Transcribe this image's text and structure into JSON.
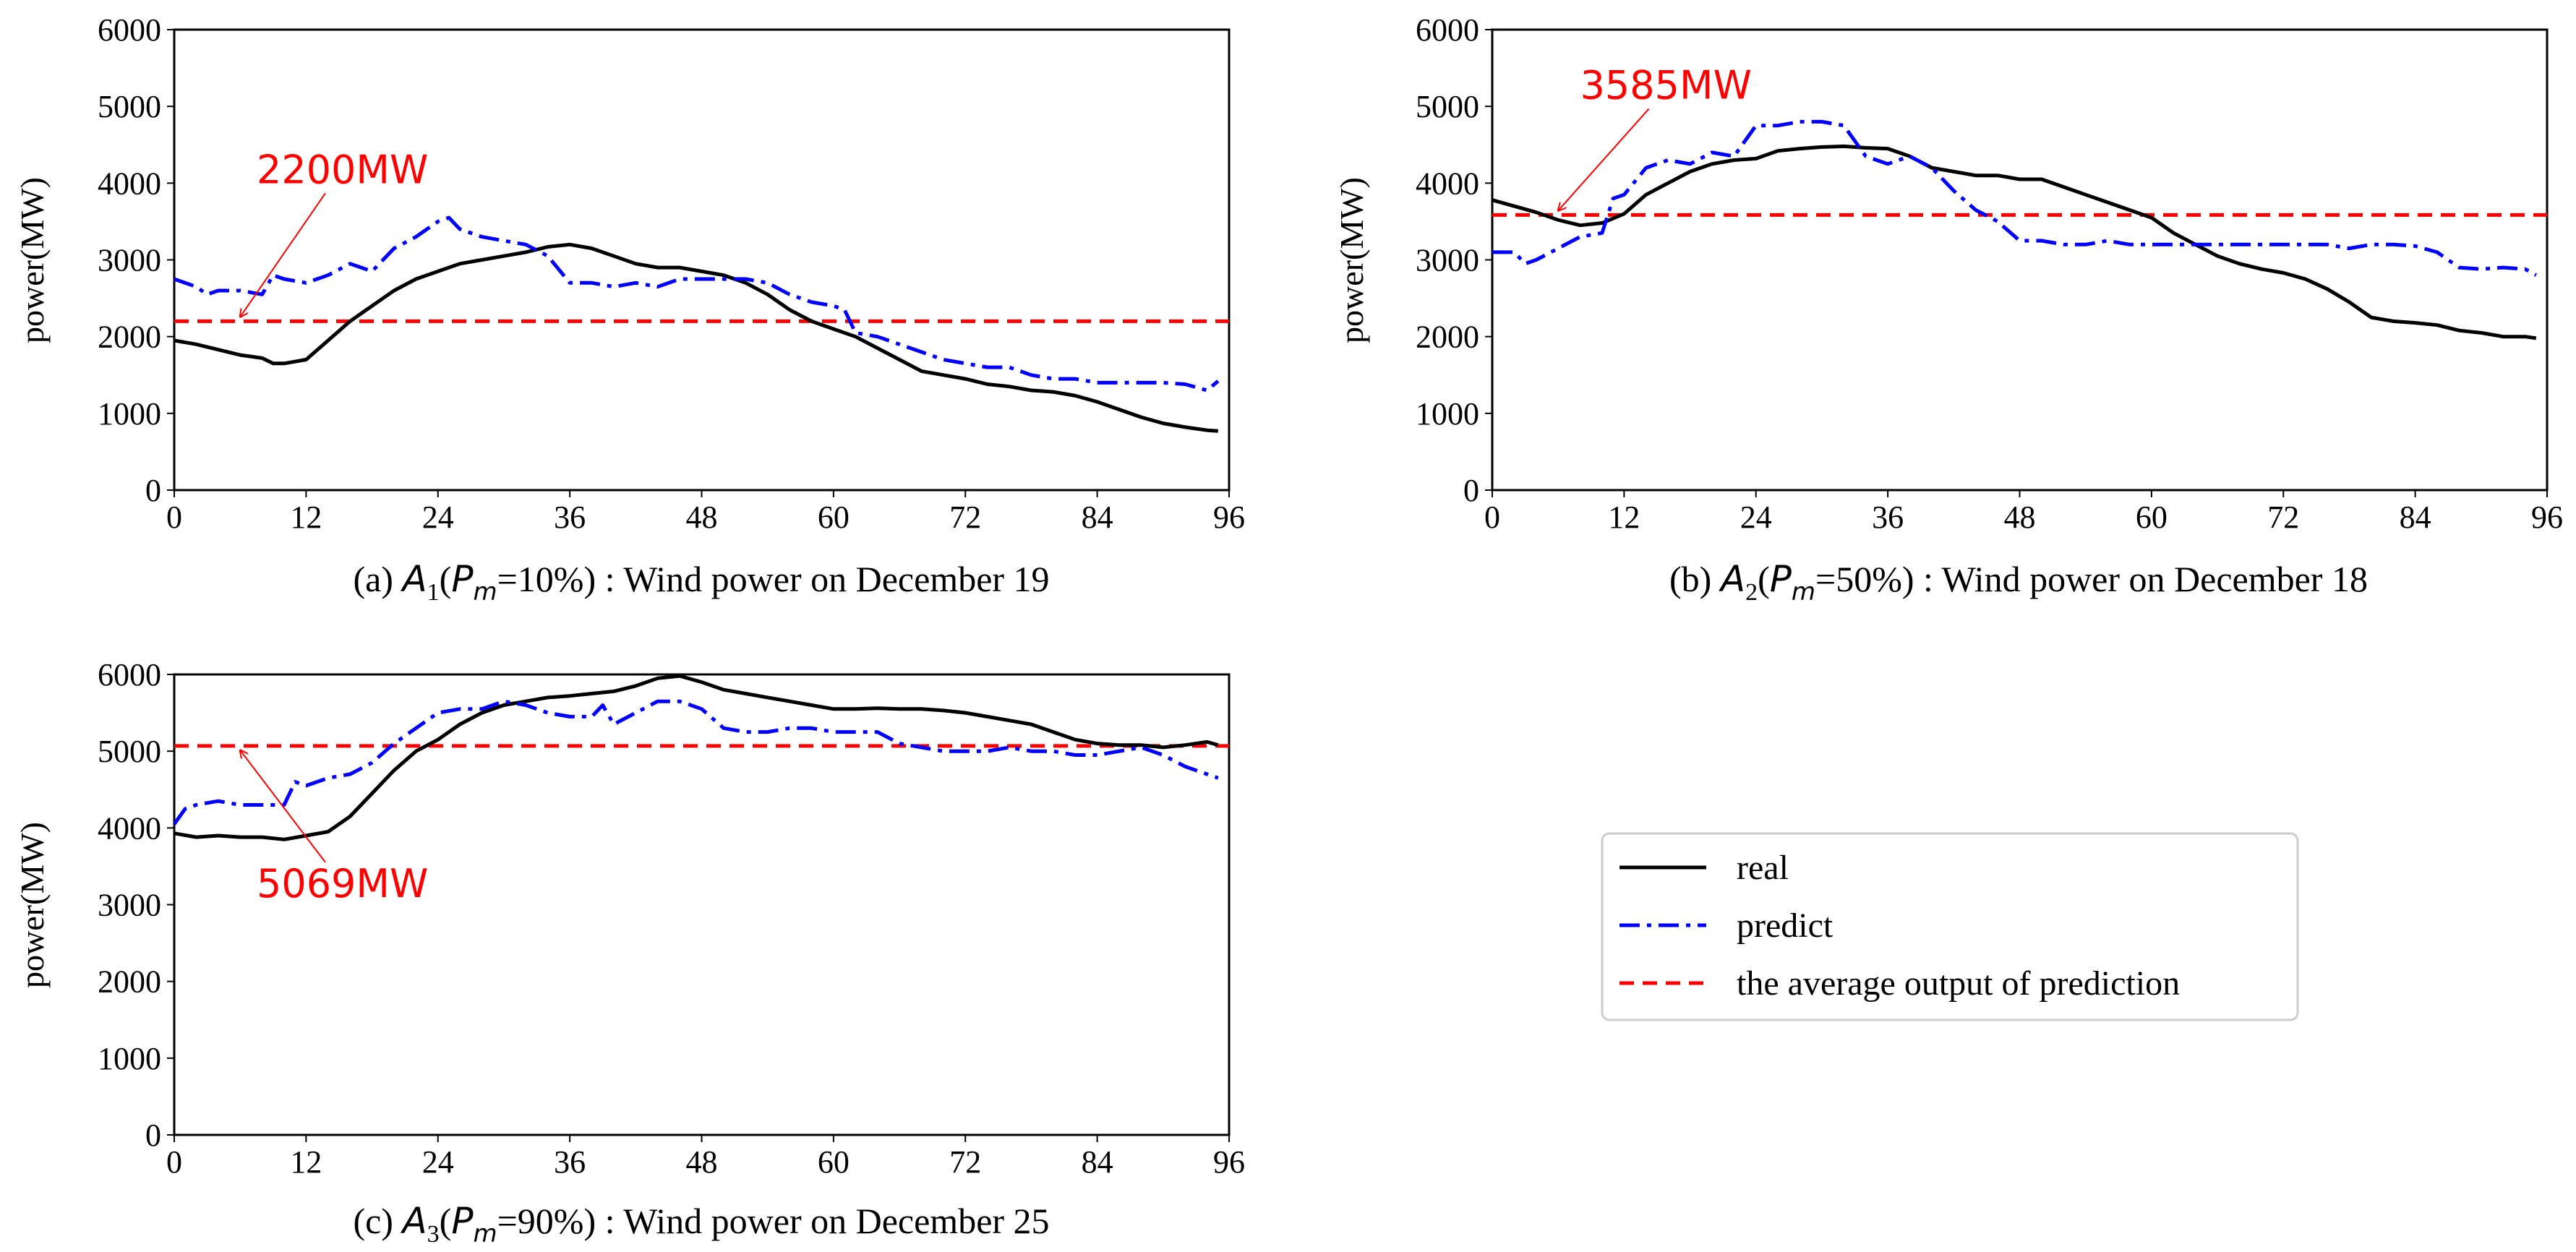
{
  "colors": {
    "real": "#000000",
    "predict": "#0000ff",
    "average": "#ff0000",
    "annotation": "#ff0000"
  },
  "legend": {
    "real": "real",
    "predict": "predict",
    "average": "the average output of prediction"
  },
  "chart_data": [
    {
      "id": "a",
      "type": "line",
      "ylabel": "power(MW)",
      "xlim": [
        0,
        96
      ],
      "ylim": [
        0,
        6000
      ],
      "xticks": [
        0,
        12,
        24,
        36,
        48,
        60,
        72,
        84,
        96
      ],
      "yticks": [
        0,
        1000,
        2000,
        3000,
        4000,
        5000,
        6000
      ],
      "caption": {
        "prefix": "(a) ",
        "var": "A",
        "sub": "1",
        "open": "(",
        "pvar": "P",
        "psub": "m",
        "rest": "=10%) : Wind power on December 19"
      },
      "average": 2200,
      "annotation": {
        "label": "2200MW",
        "target": [
          6,
          2200
        ],
        "text_at": [
          7.5,
          4000
        ]
      },
      "series": [
        {
          "name": "real",
          "x": [
            0,
            2,
            4,
            6,
            8,
            9,
            10,
            12,
            14,
            16,
            18,
            20,
            22,
            24,
            26,
            28,
            30,
            32,
            34,
            36,
            38,
            40,
            42,
            44,
            46,
            48,
            50,
            52,
            54,
            56,
            58,
            60,
            62,
            64,
            66,
            68,
            70,
            72,
            74,
            76,
            78,
            80,
            82,
            84,
            86,
            88,
            90,
            92,
            94,
            95
          ],
          "values": [
            1950,
            1900,
            1830,
            1760,
            1720,
            1650,
            1650,
            1700,
            1950,
            2200,
            2400,
            2600,
            2750,
            2850,
            2950,
            3000,
            3050,
            3100,
            3170,
            3200,
            3150,
            3050,
            2950,
            2900,
            2900,
            2850,
            2800,
            2700,
            2550,
            2350,
            2200,
            2100,
            2000,
            1850,
            1700,
            1550,
            1500,
            1450,
            1380,
            1350,
            1300,
            1280,
            1230,
            1150,
            1050,
            950,
            870,
            820,
            780,
            770
          ]
        },
        {
          "name": "predict",
          "x": [
            0,
            2,
            3,
            4,
            6,
            8,
            9,
            10,
            12,
            14,
            16,
            18,
            20,
            22,
            24,
            25,
            26,
            28,
            30,
            32,
            34,
            36,
            38,
            40,
            42,
            44,
            46,
            48,
            50,
            52,
            54,
            56,
            58,
            60,
            61,
            62,
            64,
            66,
            68,
            70,
            72,
            74,
            76,
            78,
            80,
            82,
            84,
            86,
            88,
            90,
            92,
            94,
            95
          ],
          "values": [
            2750,
            2650,
            2550,
            2600,
            2600,
            2550,
            2800,
            2750,
            2700,
            2800,
            2950,
            2850,
            3150,
            3300,
            3500,
            3550,
            3400,
            3300,
            3250,
            3200,
            3050,
            2700,
            2700,
            2650,
            2700,
            2650,
            2750,
            2750,
            2750,
            2750,
            2700,
            2550,
            2450,
            2400,
            2350,
            2050,
            2000,
            1900,
            1800,
            1700,
            1650,
            1600,
            1600,
            1500,
            1450,
            1450,
            1400,
            1400,
            1400,
            1400,
            1380,
            1300,
            1420
          ]
        }
      ]
    },
    {
      "id": "b",
      "type": "line",
      "ylabel": "power(MW)",
      "xlim": [
        0,
        96
      ],
      "ylim": [
        0,
        6000
      ],
      "xticks": [
        0,
        12,
        24,
        36,
        48,
        60,
        72,
        84,
        96
      ],
      "yticks": [
        0,
        1000,
        2000,
        3000,
        4000,
        5000,
        6000
      ],
      "caption": {
        "prefix": "(b) ",
        "var": "A",
        "sub": "2",
        "open": "(",
        "pvar": "P",
        "psub": "m",
        "rest": "=50%) : Wind power on December 18"
      },
      "average": 3585,
      "annotation": {
        "label": "3585MW",
        "target": [
          6,
          3585
        ],
        "text_at": [
          8,
          5100
        ]
      },
      "series": [
        {
          "name": "real",
          "x": [
            0,
            2,
            4,
            6,
            8,
            10,
            12,
            14,
            16,
            18,
            20,
            22,
            24,
            26,
            28,
            30,
            32,
            34,
            36,
            38,
            40,
            42,
            44,
            46,
            48,
            50,
            52,
            54,
            56,
            58,
            60,
            62,
            64,
            66,
            68,
            70,
            72,
            74,
            76,
            78,
            80,
            82,
            84,
            86,
            88,
            90,
            92,
            94,
            95
          ],
          "values": [
            3780,
            3700,
            3620,
            3520,
            3450,
            3480,
            3600,
            3850,
            4000,
            4150,
            4250,
            4300,
            4320,
            4420,
            4450,
            4470,
            4480,
            4460,
            4450,
            4350,
            4200,
            4150,
            4100,
            4100,
            4050,
            4050,
            3950,
            3850,
            3750,
            3650,
            3550,
            3350,
            3200,
            3050,
            2950,
            2880,
            2830,
            2750,
            2620,
            2450,
            2250,
            2200,
            2180,
            2150,
            2080,
            2050,
            2000,
            2000,
            1980
          ]
        },
        {
          "name": "predict",
          "x": [
            0,
            2,
            3,
            4,
            6,
            8,
            10,
            11,
            12,
            14,
            16,
            18,
            20,
            22,
            24,
            26,
            28,
            30,
            32,
            34,
            36,
            38,
            40,
            42,
            44,
            46,
            48,
            50,
            52,
            54,
            56,
            58,
            60,
            62,
            64,
            66,
            68,
            70,
            72,
            74,
            76,
            78,
            80,
            82,
            84,
            86,
            88,
            90,
            92,
            94,
            95
          ],
          "values": [
            3100,
            3100,
            2950,
            3000,
            3150,
            3300,
            3350,
            3800,
            3850,
            4200,
            4300,
            4250,
            4400,
            4350,
            4750,
            4750,
            4800,
            4800,
            4750,
            4350,
            4250,
            4350,
            4200,
            3900,
            3650,
            3500,
            3250,
            3250,
            3200,
            3200,
            3250,
            3200,
            3200,
            3200,
            3200,
            3200,
            3200,
            3200,
            3200,
            3200,
            3200,
            3150,
            3200,
            3200,
            3180,
            3100,
            2900,
            2880,
            2900,
            2880,
            2800
          ]
        }
      ]
    },
    {
      "id": "c",
      "type": "line",
      "ylabel": "power(MW)",
      "xlim": [
        0,
        96
      ],
      "ylim": [
        0,
        6000
      ],
      "xticks": [
        0,
        12,
        24,
        36,
        48,
        60,
        72,
        84,
        96
      ],
      "yticks": [
        0,
        1000,
        2000,
        3000,
        4000,
        5000,
        6000
      ],
      "caption": {
        "prefix": "(c) ",
        "var": "A",
        "sub": "3",
        "open": "(",
        "pvar": "P",
        "psub": "m",
        "rest": "=90%) : Wind power on December 25"
      },
      "average": 5069,
      "annotation": {
        "label": "5069MW",
        "target": [
          6,
          5069
        ],
        "text_at": [
          7.5,
          3100
        ]
      },
      "series": [
        {
          "name": "real",
          "x": [
            0,
            2,
            4,
            6,
            8,
            10,
            12,
            14,
            16,
            18,
            20,
            22,
            24,
            26,
            28,
            30,
            32,
            34,
            36,
            38,
            40,
            42,
            44,
            46,
            48,
            50,
            52,
            54,
            56,
            58,
            60,
            62,
            64,
            66,
            68,
            70,
            72,
            74,
            76,
            78,
            80,
            82,
            84,
            86,
            88,
            90,
            92,
            94,
            95
          ],
          "values": [
            3930,
            3880,
            3900,
            3880,
            3880,
            3850,
            3900,
            3950,
            4150,
            4450,
            4750,
            5000,
            5150,
            5350,
            5500,
            5600,
            5650,
            5700,
            5720,
            5750,
            5780,
            5850,
            5950,
            5980,
            5900,
            5800,
            5750,
            5700,
            5650,
            5600,
            5550,
            5550,
            5560,
            5550,
            5550,
            5530,
            5500,
            5450,
            5400,
            5350,
            5250,
            5150,
            5100,
            5080,
            5080,
            5050,
            5080,
            5120,
            5080
          ]
        },
        {
          "name": "predict",
          "x": [
            0,
            1,
            2,
            4,
            6,
            8,
            10,
            11,
            12,
            14,
            16,
            18,
            20,
            22,
            24,
            26,
            28,
            30,
            32,
            34,
            36,
            38,
            39,
            40,
            42,
            44,
            46,
            48,
            50,
            52,
            54,
            56,
            58,
            60,
            62,
            64,
            66,
            68,
            70,
            72,
            74,
            76,
            78,
            80,
            82,
            84,
            86,
            88,
            90,
            92,
            94,
            95
          ],
          "values": [
            4050,
            4250,
            4300,
            4350,
            4300,
            4300,
            4300,
            4600,
            4550,
            4650,
            4700,
            4850,
            5100,
            5300,
            5500,
            5550,
            5550,
            5650,
            5600,
            5500,
            5450,
            5450,
            5600,
            5350,
            5500,
            5650,
            5650,
            5550,
            5300,
            5250,
            5250,
            5300,
            5300,
            5250,
            5250,
            5250,
            5100,
            5050,
            5000,
            5000,
            5000,
            5050,
            5000,
            5000,
            4950,
            4950,
            5000,
            5050,
            4950,
            4800,
            4700,
            4650
          ]
        }
      ]
    }
  ]
}
